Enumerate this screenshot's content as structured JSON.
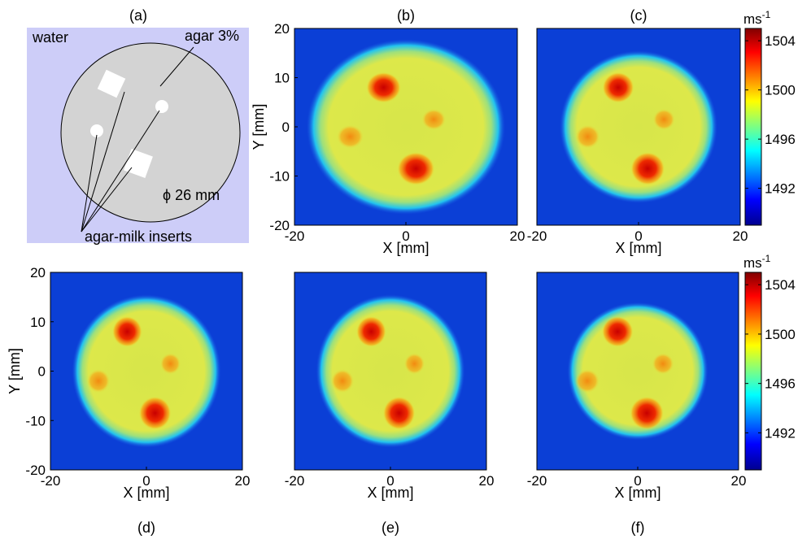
{
  "panels": [
    "(a)",
    "(b)",
    "(c)",
    "(d)",
    "(e)",
    "(f)"
  ],
  "diagram": {
    "water": "water",
    "agar": "agar 3%",
    "diameter": "ϕ 26 mm",
    "inserts": "agar-milk inserts"
  },
  "axes": {
    "x_label": "X [mm]",
    "y_label": "Y [mm]",
    "xticks": [
      -20,
      0,
      20
    ],
    "yticks": [
      20,
      10,
      0,
      -10,
      -20
    ]
  },
  "colorbar": {
    "unit": "ms",
    "unit_exponent": "-1",
    "ticks": [
      1504,
      1500,
      1496,
      1492
    ]
  }
}
